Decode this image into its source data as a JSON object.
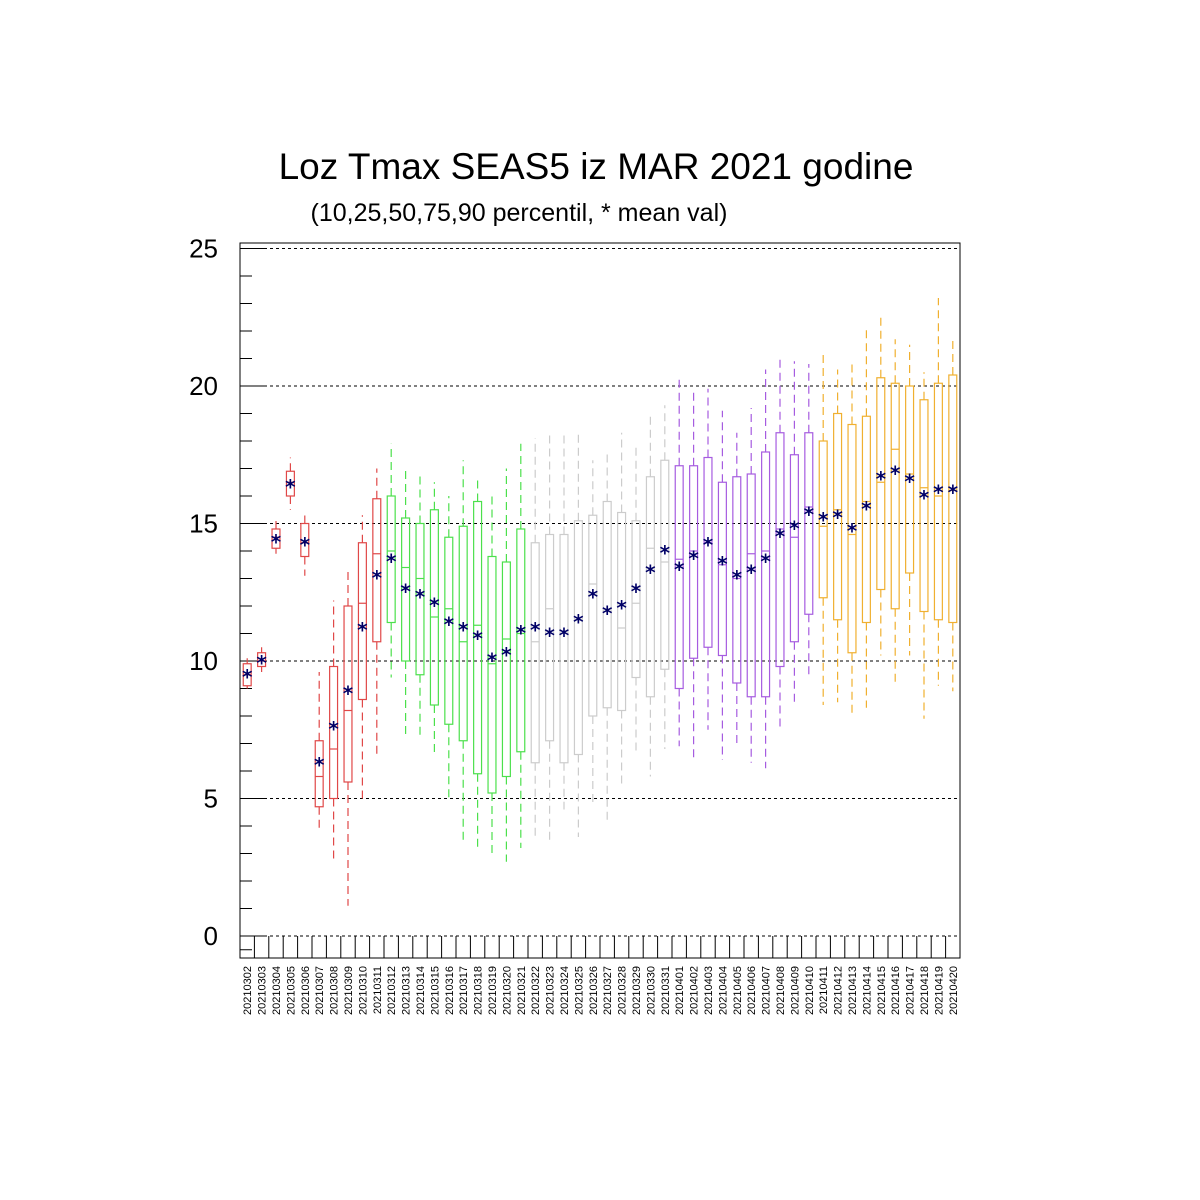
{
  "chart_data": {
    "type": "box",
    "title": "Loz Tmax SEAS5 iz MAR 2021 godine",
    "subtitle": "(10,25,50,75,90 percentil, * mean val)",
    "ylim": [
      -0.8,
      25.2
    ],
    "yticks": [
      0,
      5,
      10,
      15,
      20,
      25
    ],
    "grid_lines": [
      5,
      10,
      15,
      20,
      25
    ],
    "mean_marker": "*",
    "colors": {
      "red": "#e04848",
      "green": "#4ce04c",
      "gray": "#cccccc",
      "purple": "#a65ce0",
      "orange": "#f0b030",
      "mean": "#000066"
    },
    "categories": [
      "20210302",
      "20210303",
      "20210304",
      "20210305",
      "20210306",
      "20210307",
      "20210308",
      "20210309",
      "20210310",
      "20210311",
      "20210312",
      "20210313",
      "20210314",
      "20210315",
      "20210316",
      "20210317",
      "20210318",
      "20210319",
      "20210320",
      "20210321",
      "20210322",
      "20210323",
      "20210324",
      "20210325",
      "20210326",
      "20210327",
      "20210328",
      "20210329",
      "20210330",
      "20210331",
      "20210401",
      "20210402",
      "20210403",
      "20210404",
      "20210405",
      "20210406",
      "20210407",
      "20210408",
      "20210409",
      "20210410",
      "20210411",
      "20210412",
      "20210413",
      "20210414",
      "20210415",
      "20210416",
      "20210417",
      "20210418",
      "20210419",
      "20210420"
    ],
    "series": [
      {
        "color": "red",
        "boxes": [
          [
            9.0,
            9.1,
            9.5,
            9.9,
            10.1
          ],
          [
            9.6,
            9.8,
            10.0,
            10.3,
            10.5
          ],
          [
            13.9,
            14.1,
            14.5,
            14.8,
            15.1
          ],
          [
            15.5,
            16.0,
            16.5,
            16.9,
            17.4
          ],
          [
            13.1,
            13.8,
            14.3,
            15.0,
            15.3
          ],
          [
            3.8,
            4.7,
            5.8,
            7.1,
            9.6
          ],
          [
            2.8,
            5.0,
            6.8,
            9.8,
            12.2
          ],
          [
            1.1,
            5.6,
            8.2,
            12.0,
            13.3
          ],
          [
            5.0,
            8.6,
            12.1,
            14.3,
            15.3
          ],
          [
            6.5,
            10.7,
            13.9,
            15.9,
            17.0
          ]
        ]
      },
      {
        "color": "green",
        "boxes": [
          [
            9.4,
            11.4,
            14.0,
            16.0,
            17.9
          ],
          [
            7.2,
            10.0,
            13.4,
            15.2,
            17.0
          ],
          [
            7.2,
            9.5,
            13.0,
            15.0,
            16.8
          ],
          [
            6.6,
            8.4,
            11.6,
            15.5,
            16.5
          ],
          [
            5.0,
            7.7,
            11.9,
            14.5,
            16.0
          ],
          [
            3.4,
            7.1,
            10.7,
            14.9,
            17.3
          ],
          [
            3.2,
            5.9,
            11.3,
            15.8,
            16.7
          ],
          [
            2.9,
            5.2,
            9.9,
            13.8,
            16.1
          ],
          [
            2.7,
            5.8,
            10.8,
            13.6,
            17.0
          ],
          [
            3.2,
            6.7,
            11.0,
            14.8,
            17.9
          ]
        ]
      },
      {
        "color": "gray",
        "boxes": [
          [
            3.5,
            6.3,
            10.7,
            14.3,
            18.1
          ],
          [
            3.5,
            7.1,
            11.9,
            14.6,
            18.2
          ],
          [
            4.6,
            6.3,
            11.0,
            14.6,
            18.3
          ],
          [
            3.6,
            6.6,
            11.5,
            15.1,
            18.4
          ],
          [
            4.8,
            8.0,
            12.8,
            15.3,
            17.3
          ],
          [
            4.1,
            8.3,
            11.8,
            15.8,
            17.6
          ],
          [
            5.5,
            8.2,
            11.2,
            15.4,
            18.3
          ],
          [
            6.7,
            9.4,
            12.1,
            15.1,
            17.8
          ],
          [
            5.8,
            8.7,
            14.1,
            16.7,
            19.0
          ],
          [
            6.8,
            9.7,
            13.6,
            17.3,
            19.3
          ]
        ]
      },
      {
        "color": "purple",
        "boxes": [
          [
            6.9,
            9.0,
            13.7,
            17.1,
            20.4
          ],
          [
            6.5,
            10.1,
            14.0,
            17.1,
            19.8
          ],
          [
            7.5,
            10.5,
            14.3,
            17.4,
            19.9
          ],
          [
            6.4,
            10.2,
            13.5,
            16.5,
            19.1
          ],
          [
            7.0,
            9.2,
            13.0,
            16.7,
            18.3
          ],
          [
            6.3,
            8.7,
            13.9,
            16.8,
            19.2
          ],
          [
            6.1,
            8.7,
            14.0,
            17.6,
            20.6
          ],
          [
            7.6,
            9.8,
            14.8,
            18.3,
            21.0
          ],
          [
            8.5,
            10.7,
            14.5,
            17.5,
            20.9
          ],
          [
            9.4,
            11.7,
            15.6,
            18.3,
            20.8
          ]
        ]
      },
      {
        "color": "orange",
        "boxes": [
          [
            8.4,
            12.3,
            14.9,
            18.0,
            21.3
          ],
          [
            8.5,
            11.5,
            15.5,
            19.0,
            20.6
          ],
          [
            8.0,
            10.3,
            14.6,
            18.6,
            20.9
          ],
          [
            8.3,
            11.4,
            15.8,
            18.9,
            22.2
          ],
          [
            10.2,
            12.6,
            16.5,
            20.3,
            22.5
          ],
          [
            9.1,
            11.9,
            17.7,
            20.1,
            21.7
          ],
          [
            10.2,
            13.2,
            16.8,
            20.0,
            21.5
          ],
          [
            7.9,
            11.8,
            16.3,
            19.5,
            20.5
          ],
          [
            9.1,
            11.5,
            16.0,
            20.1,
            23.2
          ],
          [
            8.9,
            11.4,
            16.2,
            20.4,
            21.8
          ]
        ]
      }
    ],
    "means": [
      9.5,
      10.0,
      14.4,
      16.4,
      14.3,
      6.3,
      7.6,
      8.9,
      11.2,
      13.1,
      13.7,
      12.6,
      12.4,
      12.1,
      11.4,
      11.2,
      10.9,
      10.1,
      10.3,
      11.1,
      11.2,
      11.0,
      11.0,
      11.5,
      12.4,
      11.8,
      12.0,
      12.6,
      13.3,
      14.0,
      13.4,
      13.8,
      14.3,
      13.6,
      13.1,
      13.3,
      13.7,
      14.6,
      14.9,
      15.4,
      15.2,
      15.3,
      14.8,
      15.6,
      16.7,
      16.9,
      16.6,
      16.0,
      16.2,
      16.2
    ]
  }
}
